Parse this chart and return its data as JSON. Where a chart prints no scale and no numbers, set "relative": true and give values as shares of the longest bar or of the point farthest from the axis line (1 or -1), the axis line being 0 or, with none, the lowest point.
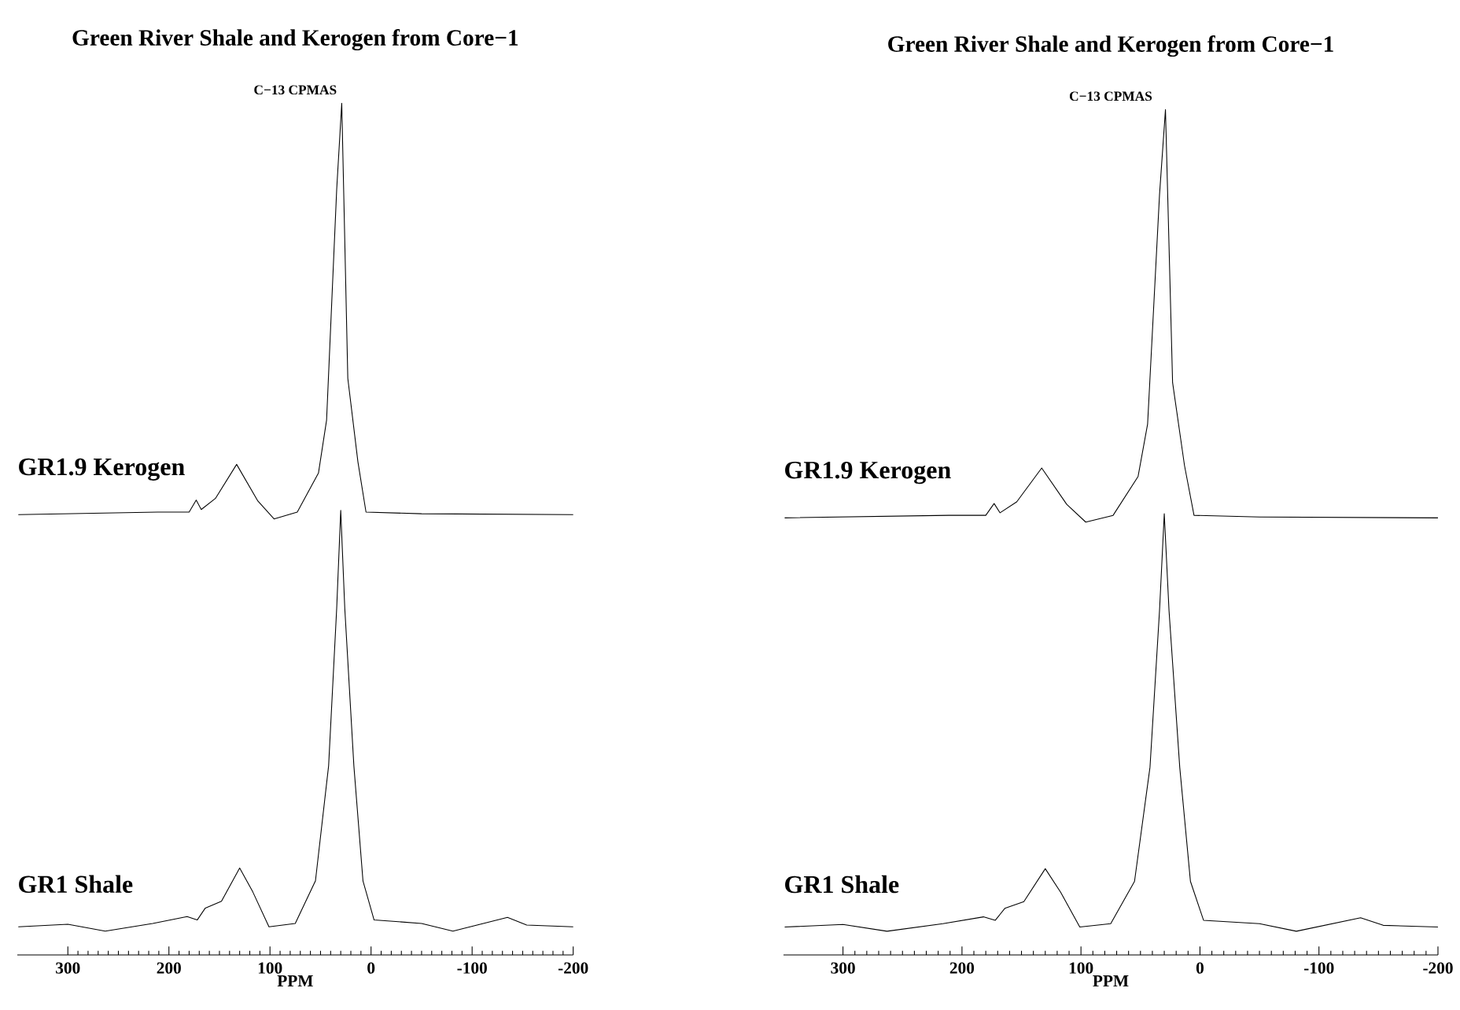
{
  "chart_data": [
    {
      "type": "line",
      "title": "Green River Shale and Kerogen from Core−1",
      "subtitle": "C−13 CPMAS",
      "xlabel": "PPM",
      "relative": true,
      "xlim": [
        350,
        -200
      ],
      "xticks": [
        300,
        200,
        100,
        0,
        -100,
        -200
      ],
      "marker": "none",
      "line_style": "solid",
      "series": [
        {
          "name": "GR1.9 Kerogen",
          "color": "#000000",
          "x": [
            349,
            211,
            180,
            173,
            168,
            154,
            133,
            112,
            96,
            73,
            52,
            44,
            34,
            29,
            23,
            13,
            5,
            -50,
            -200
          ],
          "values": [
            0.517,
            0.52,
            0.52,
            0.534,
            0.523,
            0.536,
            0.576,
            0.533,
            0.512,
            0.52,
            0.566,
            0.628,
            0.899,
            1.0,
            0.677,
            0.579,
            0.52,
            0.518,
            0.517
          ]
        },
        {
          "name": "GR1 Shale",
          "color": "#000000",
          "x": [
            349,
            300,
            263,
            216,
            182,
            172,
            164,
            148,
            130,
            117,
            101,
            75,
            55,
            42,
            34,
            30,
            26,
            17,
            8,
            -3,
            -50,
            -81,
            -135,
            -154,
            -200
          ],
          "values": [
            0.033,
            0.036,
            0.028,
            0.037,
            0.045,
            0.041,
            0.055,
            0.063,
            0.102,
            0.074,
            0.033,
            0.037,
            0.087,
            0.222,
            0.407,
            0.522,
            0.407,
            0.222,
            0.087,
            0.041,
            0.037,
            0.028,
            0.044,
            0.035,
            0.033
          ]
        }
      ]
    },
    {
      "type": "line",
      "title": "Green River Shale and Kerogen from Core−1",
      "subtitle": "C−13 CPMAS",
      "xlabel": "PPM",
      "relative": true,
      "xlim": [
        350,
        -200
      ],
      "xticks": [
        300,
        200,
        100,
        0,
        -100,
        -200
      ],
      "marker": "none",
      "line_style": "solid",
      "series": [
        {
          "name": "GR1.9 Kerogen",
          "color": "#000000",
          "x": [
            349,
            211,
            180,
            173,
            168,
            154,
            133,
            112,
            96,
            73,
            52,
            44,
            34,
            29,
            23,
            13,
            5,
            -50,
            -200
          ],
          "values": [
            0.517,
            0.52,
            0.52,
            0.534,
            0.523,
            0.536,
            0.576,
            0.533,
            0.512,
            0.52,
            0.566,
            0.628,
            0.899,
            1.0,
            0.677,
            0.579,
            0.52,
            0.518,
            0.517
          ]
        },
        {
          "name": "GR1 Shale",
          "color": "#000000",
          "x": [
            349,
            300,
            263,
            216,
            182,
            172,
            164,
            148,
            130,
            117,
            101,
            75,
            55,
            42,
            34,
            30,
            26,
            17,
            8,
            -3,
            -50,
            -81,
            -135,
            -154,
            -200
          ],
          "values": [
            0.033,
            0.036,
            0.028,
            0.037,
            0.045,
            0.041,
            0.055,
            0.063,
            0.102,
            0.074,
            0.033,
            0.037,
            0.087,
            0.222,
            0.407,
            0.522,
            0.407,
            0.222,
            0.087,
            0.041,
            0.037,
            0.028,
            0.044,
            0.035,
            0.033
          ]
        }
      ]
    }
  ]
}
